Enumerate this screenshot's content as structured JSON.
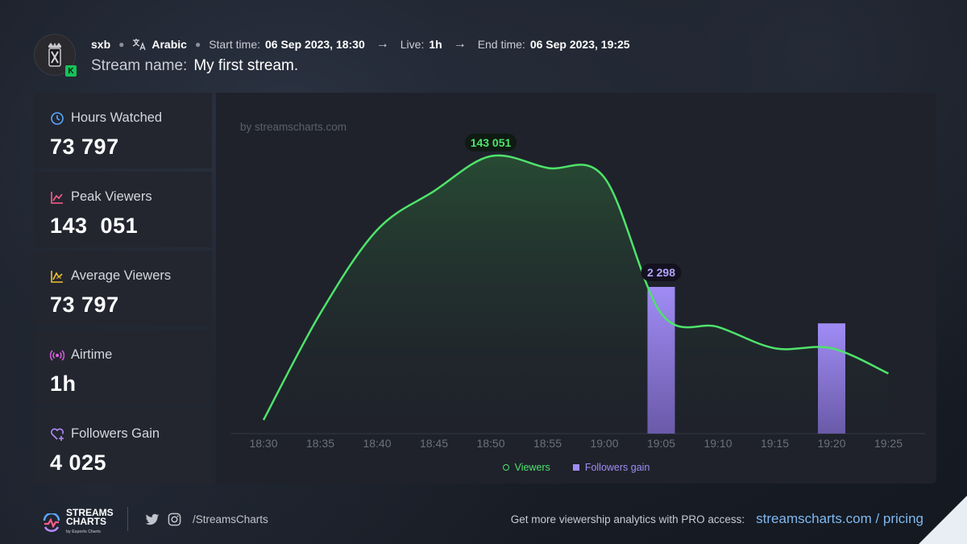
{
  "header": {
    "channel": "sxb",
    "language": "Arabic",
    "start_label": "Start time:",
    "start_value": "06 Sep 2023, 18:30",
    "live_label": "Live:",
    "live_value": "1h",
    "end_label": "End time:",
    "end_value": "06 Sep 2023, 19:25",
    "stream_name_label": "Stream name:",
    "stream_name_value": "My first stream.",
    "badge_letter": "K"
  },
  "stats": [
    {
      "label": "Hours Watched",
      "value": "73 797",
      "icon": "clock-icon",
      "color": "#5aa7ff"
    },
    {
      "label": "Peak Viewers",
      "value": "143  051",
      "icon": "peak-chart-icon",
      "color": "#ff5d8a"
    },
    {
      "label": "Average Viewers",
      "value": "73 797",
      "icon": "average-chart-icon",
      "color": "#f2c230"
    },
    {
      "label": "Airtime",
      "value": "1h",
      "icon": "broadcast-icon",
      "color": "#e060e0"
    },
    {
      "label": "Followers Gain",
      "value": "4 025",
      "icon": "heart-plus-icon",
      "color": "#b58cff"
    }
  ],
  "chart": {
    "watermark": "by streamscharts.com",
    "peak_label": "143 051",
    "bar_label": "2 298",
    "legend_viewers": "Viewers",
    "legend_followers": "Followers gain"
  },
  "chart_data": {
    "type": "line",
    "categories": [
      "18:30",
      "18:35",
      "18:40",
      "18:45",
      "18:50",
      "18:55",
      "19:00",
      "19:05",
      "19:10",
      "19:15",
      "19:20",
      "19:25"
    ],
    "series": [
      {
        "name": "Viewers",
        "type": "line",
        "color": "#4ee36b",
        "values": [
          7000,
          62000,
          105000,
          125000,
          143051,
          137000,
          132000,
          62000,
          55000,
          44000,
          44000,
          31000
        ]
      },
      {
        "name": "Followers gain",
        "type": "bar",
        "color": "#a08cf5",
        "values": [
          null,
          null,
          null,
          null,
          null,
          null,
          null,
          2298,
          null,
          null,
          1727,
          null
        ]
      }
    ],
    "ylim": [
      0,
      160000
    ],
    "annotations": [
      "143 051",
      "2 298"
    ],
    "grid": false,
    "legend": "bottom-center"
  },
  "footer": {
    "logo_line1": "STREAMS",
    "logo_line2": "CHARTS",
    "logo_sub": "by Esports Charts",
    "social_handle": "/StreamsCharts",
    "cta_text": "Get more viewership analytics with PRO access:",
    "cta_link": "streamscharts.com / pricing"
  }
}
